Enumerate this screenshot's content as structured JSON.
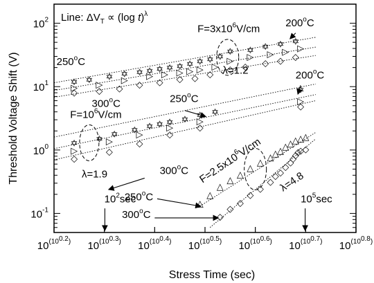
{
  "chart_data": {
    "type": "scatter",
    "title": "",
    "xlabel": "Stress Time (sec)",
    "ylabel": "Threshold Voltage Shift (V)",
    "x_scale": "double-log (tick value t = 10^(10^a))",
    "y_scale": "log",
    "xlim_exponent": [
      0.2,
      0.8
    ],
    "ylim": [
      0.05,
      200
    ],
    "grid": false,
    "x_ticks": [
      {
        "base": "10",
        "exp": "(10",
        "exp_sup": "0.2",
        "close": ")",
        "value_exponent": 0.2
      },
      {
        "base": "10",
        "exp": "(10",
        "exp_sup": "0.3",
        "close": ")",
        "value_exponent": 0.3
      },
      {
        "base": "10",
        "exp": "(10",
        "exp_sup": "0.4",
        "close": ")",
        "value_exponent": 0.4
      },
      {
        "base": "10",
        "exp": "(10",
        "exp_sup": "0.5",
        "close": ")",
        "value_exponent": 0.5
      },
      {
        "base": "10",
        "exp": "(10",
        "exp_sup": "0.6",
        "close": ")",
        "value_exponent": 0.6
      },
      {
        "base": "10",
        "exp": "(10",
        "exp_sup": "0.7",
        "close": ")",
        "value_exponent": 0.7
      },
      {
        "base": "10",
        "exp": "(10",
        "exp_sup": "0.8",
        "close": ")",
        "value_exponent": 0.8
      }
    ],
    "y_ticks": [
      {
        "base": "10",
        "exp": "2",
        "value": 100
      },
      {
        "base": "10",
        "exp": "1",
        "value": 10
      },
      {
        "base": "10",
        "exp": "0",
        "value": 1
      },
      {
        "base": "10",
        "exp": "-1",
        "value": 0.1
      }
    ],
    "legend_text": {
      "prefix": "Line: ΔV",
      "sub": "T",
      "mid": " ∝ (log ",
      "var": "t",
      "suffix": ")",
      "sup": "λ"
    },
    "markers": {
      "star": "✡",
      "triangle_right": "▷",
      "diamond": "◇",
      "triangle_up": "△"
    },
    "series": [
      {
        "group": "high",
        "temp": "200°C",
        "marker": "star",
        "line": [
          [
            0.2,
            11.5
          ],
          [
            0.72,
            60
          ]
        ],
        "points": [
          [
            0.24,
            12
          ],
          [
            0.27,
            13
          ],
          [
            0.31,
            14.5
          ],
          [
            0.34,
            16
          ],
          [
            0.37,
            17
          ],
          [
            0.39,
            18
          ],
          [
            0.41,
            19
          ],
          [
            0.43,
            20
          ],
          [
            0.45,
            21
          ],
          [
            0.47,
            23
          ],
          [
            0.49,
            25
          ],
          [
            0.51,
            27
          ],
          [
            0.53,
            30
          ],
          [
            0.55,
            36
          ],
          [
            0.59,
            38
          ],
          [
            0.62,
            43
          ],
          [
            0.65,
            47
          ],
          [
            0.68,
            52
          ]
        ]
      },
      {
        "group": "high",
        "temp": "250°C",
        "marker": "triangle_right",
        "line": [
          [
            0.2,
            8.7
          ],
          [
            0.72,
            42
          ]
        ],
        "points": [
          [
            0.24,
            9.8
          ],
          [
            0.29,
            11
          ],
          [
            0.34,
            13
          ],
          [
            0.39,
            15
          ],
          [
            0.42,
            16
          ],
          [
            0.45,
            17
          ],
          [
            0.47,
            18
          ],
          [
            0.49,
            19
          ],
          [
            0.52,
            21
          ],
          [
            0.55,
            26
          ],
          [
            0.59,
            30
          ],
          [
            0.63,
            33
          ],
          [
            0.66,
            36
          ],
          [
            0.69,
            41
          ]
        ]
      },
      {
        "group": "high",
        "temp": "300°C",
        "marker": "diamond",
        "line": [
          [
            0.2,
            6.8
          ],
          [
            0.72,
            31
          ]
        ],
        "points": [
          [
            0.24,
            8.2
          ],
          [
            0.29,
            8.8
          ],
          [
            0.33,
            9.5
          ],
          [
            0.37,
            11
          ],
          [
            0.41,
            12
          ],
          [
            0.45,
            13.5
          ],
          [
            0.48,
            14
          ],
          [
            0.51,
            16
          ],
          [
            0.55,
            19
          ],
          [
            0.58,
            21
          ],
          [
            0.62,
            24
          ],
          [
            0.65,
            26
          ],
          [
            0.68,
            30
          ]
        ]
      },
      {
        "group": "mid",
        "temp": "200°C",
        "marker": "star",
        "line": [
          [
            0.2,
            1.6
          ],
          [
            0.72,
            11
          ]
        ],
        "points": [
          [
            0.24,
            1.3
          ],
          [
            0.29,
            1.5
          ],
          [
            0.32,
            1.8
          ],
          [
            0.36,
            2.1
          ],
          [
            0.39,
            2.4
          ],
          [
            0.41,
            2.6
          ],
          [
            0.43,
            2.8
          ],
          [
            0.46,
            3.1
          ],
          [
            0.49,
            3.6
          ],
          [
            0.52,
            4.0
          ],
          [
            0.69,
            9.0
          ]
        ]
      },
      {
        "group": "mid",
        "temp": "250°C",
        "marker": "triangle_right",
        "line": [
          [
            0.2,
            1.05
          ],
          [
            0.72,
            7.5
          ]
        ],
        "points": [
          [
            0.24,
            1.0
          ],
          [
            0.31,
            1.4
          ],
          [
            0.37,
            1.8
          ],
          [
            0.43,
            2.3
          ],
          [
            0.49,
            2.9
          ],
          [
            0.69,
            6.0
          ]
        ]
      },
      {
        "group": "mid",
        "temp": "300°C",
        "marker": "diamond",
        "line": [
          [
            0.2,
            0.7
          ],
          [
            0.72,
            6.0
          ]
        ],
        "points": [
          [
            0.24,
            0.75
          ],
          [
            0.31,
            0.96
          ],
          [
            0.37,
            1.3
          ],
          [
            0.43,
            1.8
          ],
          [
            0.49,
            2.3
          ],
          [
            0.69,
            5.0
          ]
        ]
      },
      {
        "group": "low",
        "temp": "250°C",
        "marker": "triangle_up",
        "line": [
          [
            0.49,
            0.13
          ],
          [
            0.72,
            1.9
          ]
        ],
        "points": [
          [
            0.49,
            0.145
          ],
          [
            0.51,
            0.2
          ],
          [
            0.53,
            0.27
          ],
          [
            0.55,
            0.34
          ],
          [
            0.57,
            0.42
          ],
          [
            0.59,
            0.53
          ],
          [
            0.61,
            0.65
          ],
          [
            0.63,
            0.78
          ],
          [
            0.64,
            0.9
          ],
          [
            0.65,
            1.0
          ],
          [
            0.66,
            1.15
          ],
          [
            0.67,
            1.3
          ],
          [
            0.68,
            1.45
          ],
          [
            0.69,
            1.55
          ],
          [
            0.7,
            1.65
          ]
        ]
      },
      {
        "group": "low",
        "temp": "300°C",
        "marker": "diamond",
        "line": [
          [
            0.51,
            0.06
          ],
          [
            0.72,
            1.5
          ]
        ],
        "points": [
          [
            0.53,
            0.09
          ],
          [
            0.55,
            0.12
          ],
          [
            0.57,
            0.15
          ],
          [
            0.59,
            0.2
          ],
          [
            0.61,
            0.25
          ],
          [
            0.63,
            0.32
          ],
          [
            0.64,
            0.4
          ],
          [
            0.65,
            0.45
          ],
          [
            0.66,
            0.55
          ],
          [
            0.67,
            0.65
          ],
          [
            0.675,
            0.75
          ],
          [
            0.68,
            0.85
          ],
          [
            0.685,
            0.95
          ],
          [
            0.69,
            1.0
          ],
          [
            0.7,
            1.05
          ]
        ]
      }
    ],
    "annotations": [
      {
        "id": "f-high",
        "text": "F=3x10",
        "sup": "6",
        "rest": "V/cm",
        "x": 0.485,
        "y": 72
      },
      {
        "id": "lambda-high",
        "text": "λ=1.2",
        "x": 0.535,
        "y": 16
      },
      {
        "id": "t250-high",
        "text": "250",
        "sup": "o",
        "rest": "C",
        "x": 0.205,
        "y": 22
      },
      {
        "id": "t300-high",
        "text": "300",
        "sup": "o",
        "rest": "C",
        "x": 0.275,
        "y": 4.8
      },
      {
        "id": "t200-high",
        "text": "200",
        "sup": "o",
        "rest": "C",
        "x": 0.66,
        "y": 90
      },
      {
        "id": "f-mid",
        "text": "F=10",
        "sup": "6",
        "rest": "V/cm",
        "x": 0.232,
        "y": 3.2
      },
      {
        "id": "t250-mid",
        "text": "250",
        "sup": "o",
        "rest": "C",
        "x": 0.43,
        "y": 5.7
      },
      {
        "id": "t300-mid",
        "text": "300",
        "sup": "o",
        "rest": "C",
        "x": 0.41,
        "y": 0.42
      },
      {
        "id": "t200-mid",
        "text": "200",
        "sup": "o",
        "rest": "C",
        "x": 0.68,
        "y": 13.5
      },
      {
        "id": "lambda-mid",
        "text": "λ=1.9",
        "x": 0.255,
        "y": 0.37
      },
      {
        "id": "f-low",
        "text": "F=2.5x10",
        "sup": "6",
        "rest": "V/cm",
        "x": 0.495,
        "y": 0.3,
        "rotate": -34
      },
      {
        "id": "lambda-low",
        "text": "λ=4.8",
        "x": 0.655,
        "y": 0.22,
        "rotate": -34
      },
      {
        "id": "t250-low",
        "text": "250",
        "sup": "o",
        "rest": "C",
        "x": 0.34,
        "y": 0.16
      },
      {
        "id": "t300-low",
        "text": "300",
        "sup": "o",
        "rest": "C",
        "x": 0.335,
        "y": 0.085
      },
      {
        "id": "t102",
        "text": "10",
        "sup": "2",
        "rest": "sec",
        "x": 0.3,
        "y": 0.15
      },
      {
        "id": "t105",
        "text": "10",
        "sup": "5",
        "rest": "sec",
        "x": 0.69,
        "y": 0.15
      }
    ],
    "time_markers": [
      {
        "label": "10^2 sec",
        "value_exponent": 0.301
      },
      {
        "label": "10^5 sec",
        "value_exponent": 0.699
      }
    ]
  }
}
